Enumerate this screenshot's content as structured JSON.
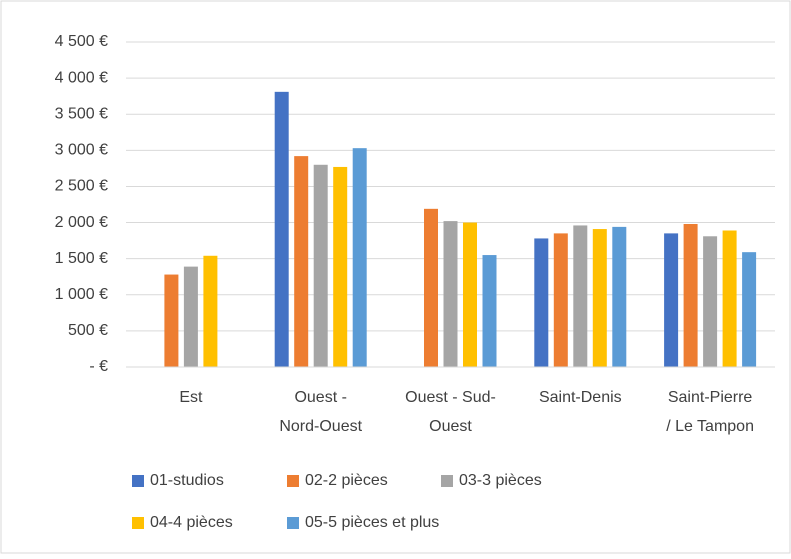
{
  "chart_data": {
    "type": "bar",
    "categories": [
      "Est",
      "Ouest - Nord-Ouest",
      "Ouest - Sud-Ouest",
      "Saint-Denis",
      "Saint-Pierre / Le Tampon"
    ],
    "category_lines": [
      [
        "Est"
      ],
      [
        "Ouest -",
        "Nord-Ouest"
      ],
      [
        "Ouest - Sud-",
        "Ouest"
      ],
      [
        "Saint-Denis"
      ],
      [
        "Saint-Pierre",
        "/ Le Tampon"
      ]
    ],
    "series": [
      {
        "name": "01-studios",
        "color": "#4472c4",
        "values": [
          null,
          3810,
          null,
          1780,
          1850
        ]
      },
      {
        "name": "02-2 pièces",
        "color": "#ed7d31",
        "values": [
          1280,
          2920,
          2190,
          1850,
          1980
        ]
      },
      {
        "name": "03-3 pièces",
        "color": "#a5a5a5",
        "values": [
          1390,
          2800,
          2020,
          1960,
          1810
        ]
      },
      {
        "name": "04-4 pièces",
        "color": "#ffc000",
        "values": [
          1540,
          2770,
          2000,
          1910,
          1890
        ]
      },
      {
        "name": "05-5 pièces et plus",
        "color": "#5b9bd5",
        "values": [
          null,
          3030,
          1550,
          1940,
          1590
        ]
      }
    ],
    "ylim": [
      0,
      4500
    ],
    "yticks": [
      {
        "value": 0,
        "label": "-   €"
      },
      {
        "value": 500,
        "label": "500 €"
      },
      {
        "value": 1000,
        "label": "1 000 €"
      },
      {
        "value": 1500,
        "label": "1 500 €"
      },
      {
        "value": 2000,
        "label": "2 000 €"
      },
      {
        "value": 2500,
        "label": "2 500 €"
      },
      {
        "value": 3000,
        "label": "3 000 €"
      },
      {
        "value": 3500,
        "label": "3 500 €"
      },
      {
        "value": 4000,
        "label": "4 000 €"
      },
      {
        "value": 4500,
        "label": "4 500 €"
      }
    ],
    "grid": true
  }
}
